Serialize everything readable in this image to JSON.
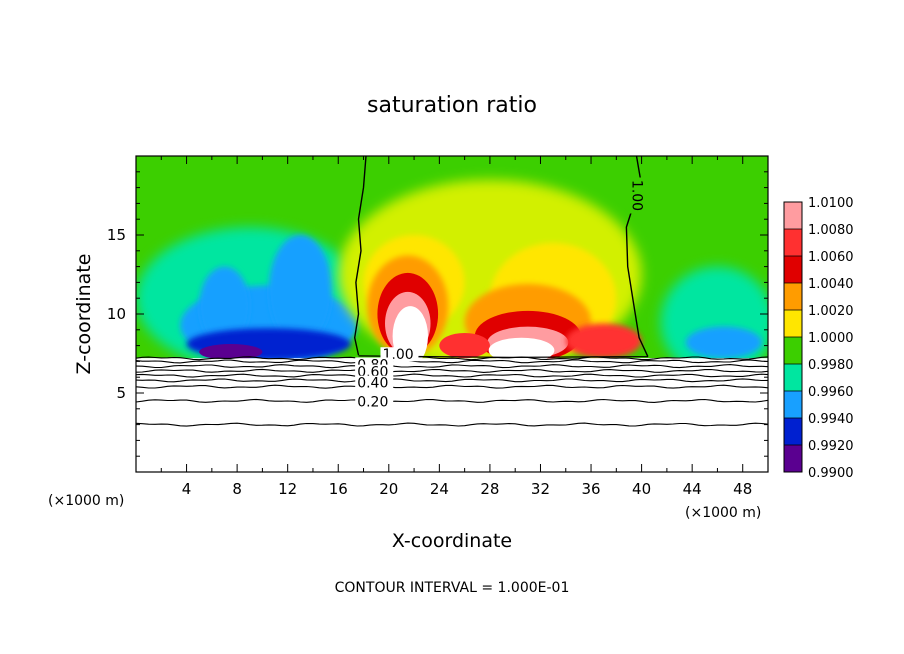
{
  "chart_data": {
    "type": "heatmap",
    "title": "saturation ratio",
    "xlabel": "X-coordinate",
    "ylabel": "Z-coordinate",
    "x_unit": "(×1000 m)",
    "y_unit": "(×1000 m)",
    "xlim": [
      0,
      50
    ],
    "ylim": [
      0,
      20
    ],
    "x_ticks": [
      4,
      8,
      12,
      16,
      20,
      24,
      28,
      32,
      36,
      40,
      44,
      48
    ],
    "y_ticks": [
      5,
      10,
      15
    ],
    "footer": "CONTOUR INTERVAL = 1.000E-01",
    "colorbar": {
      "levels": [
        "1.0100",
        "1.0080",
        "1.0060",
        "1.0040",
        "1.0020",
        "1.0000",
        "0.9980",
        "0.9960",
        "0.9940",
        "0.9920",
        "0.9900"
      ],
      "colors": [
        "#ff9ca0",
        "#ff3030",
        "#e00000",
        "#ff9c00",
        "#ffe600",
        "#d2f000",
        "#3ccf00",
        "#00e6a0",
        "#18a0ff",
        "#0020d0",
        "#5a0090"
      ]
    },
    "contour_lines": [
      {
        "label": "1.00",
        "z": 1.0
      },
      {
        "label": "0.80",
        "z": 0.8
      },
      {
        "label": "0.60",
        "z": 0.6
      },
      {
        "label": "0.40",
        "z": 0.4
      },
      {
        "label": "0.20",
        "z": 0.2
      }
    ],
    "boundary_lines_z": [
      7.2,
      7.0,
      6.7,
      6.4,
      6.1,
      5.8,
      5.4,
      4.5,
      3.0
    ],
    "grid": false
  }
}
